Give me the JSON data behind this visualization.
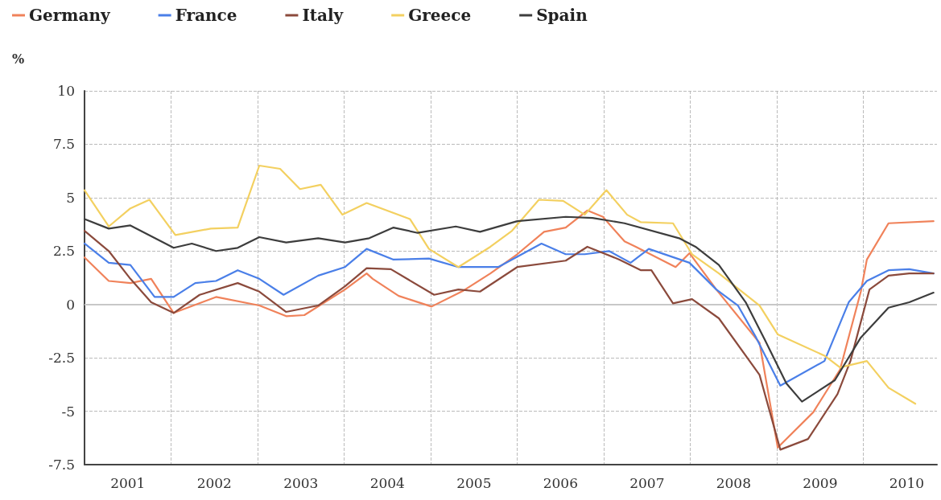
{
  "chart_data": {
    "type": "line",
    "ylabel": "%",
    "legend": "top left",
    "grid": true,
    "marker": "none",
    "line_style": "solid",
    "xlim": [
      2001,
      2010.85
    ],
    "xticks": [
      {
        "value": 2001.5,
        "label": "2001"
      },
      {
        "value": 2002,
        "label": null
      },
      {
        "value": 2002.5,
        "label": "2002"
      },
      {
        "value": 2003,
        "label": null
      },
      {
        "value": 2003.5,
        "label": "2003"
      },
      {
        "value": 2004,
        "label": null
      },
      {
        "value": 2004.5,
        "label": "2004"
      },
      {
        "value": 2005,
        "label": null
      },
      {
        "value": 2005.5,
        "label": "2005"
      },
      {
        "value": 2006,
        "label": null
      },
      {
        "value": 2006.5,
        "label": "2006"
      },
      {
        "value": 2007,
        "label": null
      },
      {
        "value": 2007.5,
        "label": "2007"
      },
      {
        "value": 2008,
        "label": null
      },
      {
        "value": 2008.5,
        "label": "2008"
      },
      {
        "value": 2009,
        "label": null
      },
      {
        "value": 2009.5,
        "label": "2009"
      },
      {
        "value": 2010,
        "label": null
      },
      {
        "value": 2010.5,
        "label": "2010"
      }
    ],
    "ylim": [
      -7.5,
      10
    ],
    "yticks": [
      -7.5,
      -5,
      -2.5,
      0,
      2.5,
      5,
      7.5,
      10
    ],
    "ref_lines": [
      {
        "axis": "y",
        "value": 0,
        "label": null,
        "color": "#c8c8c8"
      }
    ],
    "series": [
      {
        "name": "Germany",
        "color": "#f0825a",
        "x": [
          2001.0,
          2001.28,
          2001.53,
          2001.77,
          2002.03,
          2002.52,
          2003.02,
          2003.33,
          2003.54,
          2004.01,
          2004.26,
          2004.33,
          2004.63,
          2005.01,
          2005.38,
          2005.69,
          2006.0,
          2006.31,
          2006.56,
          2006.81,
          2006.99,
          2007.24,
          2007.37,
          2007.83,
          2007.99,
          2008.3,
          2008.8,
          2009.01,
          2009.42,
          2009.73,
          2009.97,
          2010.04,
          2010.29,
          2010.81
        ],
        "values": [
          2.2,
          1.1,
          1.0,
          1.2,
          -0.4,
          0.35,
          -0.05,
          -0.55,
          -0.5,
          0.7,
          1.45,
          1.2,
          0.4,
          -0.1,
          0.65,
          1.45,
          2.35,
          3.4,
          3.6,
          4.4,
          4.1,
          2.95,
          2.7,
          1.75,
          2.4,
          0.7,
          -1.8,
          -6.7,
          -5.05,
          -3.05,
          0.6,
          2.1,
          3.8,
          3.9
        ]
      },
      {
        "name": "France",
        "color": "#4a7fe8",
        "x": [
          2001.0,
          2001.28,
          2001.53,
          2001.81,
          2002.03,
          2002.28,
          2002.52,
          2002.77,
          2003.02,
          2003.3,
          2003.7,
          2004.01,
          2004.26,
          2004.57,
          2004.98,
          2005.32,
          2005.78,
          2006.28,
          2006.56,
          2006.78,
          2007.06,
          2007.31,
          2007.52,
          2007.99,
          2008.3,
          2008.55,
          2008.76,
          2009.04,
          2009.55,
          2009.83,
          2010.04,
          2010.29,
          2010.53,
          2010.81
        ],
        "values": [
          2.85,
          1.95,
          1.85,
          0.35,
          0.35,
          1.0,
          1.1,
          1.6,
          1.2,
          0.45,
          1.35,
          1.75,
          2.6,
          2.1,
          2.15,
          1.75,
          1.75,
          2.85,
          2.35,
          2.35,
          2.5,
          1.95,
          2.6,
          1.95,
          0.7,
          -0.05,
          -1.55,
          -3.8,
          -2.65,
          0.1,
          1.1,
          1.6,
          1.65,
          1.45
        ]
      },
      {
        "name": "Italy",
        "color": "#8b4a3c",
        "x": [
          2001.0,
          2001.28,
          2001.53,
          2001.77,
          2002.03,
          2002.33,
          2002.77,
          2003.02,
          2003.33,
          2003.7,
          2004.01,
          2004.26,
          2004.54,
          2005.04,
          2005.32,
          2005.57,
          2006.0,
          2006.56,
          2006.81,
          2007.18,
          2007.43,
          2007.55,
          2007.8,
          2008.02,
          2008.33,
          2008.8,
          2009.04,
          2009.36,
          2009.7,
          2009.85,
          2010.07,
          2010.29,
          2010.53,
          2010.81
        ],
        "values": [
          3.45,
          2.5,
          1.2,
          0.1,
          -0.4,
          0.45,
          1.0,
          0.6,
          -0.35,
          -0.05,
          0.85,
          1.7,
          1.65,
          0.45,
          0.7,
          0.6,
          1.75,
          2.05,
          2.7,
          2.1,
          1.6,
          1.6,
          0.05,
          0.25,
          -0.65,
          -3.3,
          -6.8,
          -6.3,
          -4.2,
          -2.65,
          0.7,
          1.35,
          1.45,
          1.45
        ]
      },
      {
        "name": "Greece",
        "color": "#f3d060",
        "x": [
          2001.0,
          2001.28,
          2001.53,
          2001.75,
          2002.05,
          2002.46,
          2002.77,
          2003.02,
          2003.26,
          2003.49,
          2003.73,
          2003.98,
          2004.26,
          2004.76,
          2004.98,
          2005.32,
          2005.69,
          2005.94,
          2006.25,
          2006.53,
          2006.78,
          2007.03,
          2007.27,
          2007.43,
          2007.8,
          2008.02,
          2008.33,
          2008.8,
          2009.01,
          2009.55,
          2009.73,
          2010.04,
          2010.29,
          2010.6
        ],
        "values": [
          5.35,
          3.65,
          4.5,
          4.9,
          3.25,
          3.55,
          3.6,
          6.5,
          6.35,
          5.4,
          5.6,
          4.2,
          4.75,
          4.0,
          2.6,
          1.75,
          2.7,
          3.45,
          4.9,
          4.85,
          4.2,
          5.35,
          4.2,
          3.85,
          3.8,
          2.35,
          1.45,
          -0.05,
          -1.4,
          -2.4,
          -2.95,
          -2.65,
          -3.9,
          -4.65
        ]
      },
      {
        "name": "Spain",
        "color": "#3d3d3d",
        "x": [
          2001.0,
          2001.28,
          2001.53,
          2002.03,
          2002.24,
          2002.52,
          2002.77,
          2003.02,
          2003.33,
          2003.7,
          2004.01,
          2004.29,
          2004.57,
          2004.85,
          2005.29,
          2005.57,
          2006.0,
          2006.56,
          2006.87,
          2007.24,
          2007.87,
          2008.06,
          2008.33,
          2008.64,
          2008.86,
          2009.11,
          2009.29,
          2009.67,
          2009.97,
          2010.29,
          2010.53,
          2010.81
        ],
        "values": [
          4.0,
          3.55,
          3.7,
          2.65,
          2.85,
          2.5,
          2.65,
          3.15,
          2.9,
          3.1,
          2.9,
          3.1,
          3.6,
          3.35,
          3.65,
          3.4,
          3.9,
          4.1,
          4.05,
          3.8,
          3.1,
          2.7,
          1.85,
          0.1,
          -1.65,
          -3.7,
          -4.55,
          -3.55,
          -1.55,
          -0.15,
          0.1,
          0.55
        ]
      }
    ]
  }
}
